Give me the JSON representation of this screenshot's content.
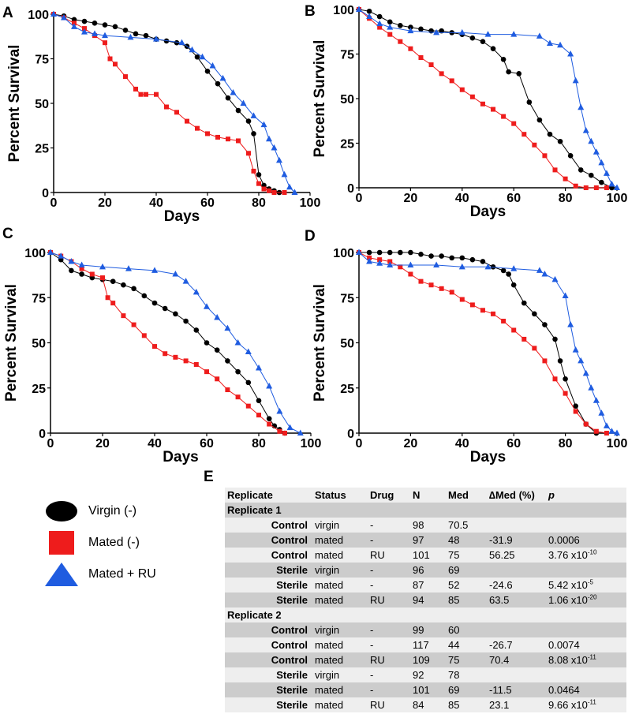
{
  "colors": {
    "virgin": "#000000",
    "mated": "#ee1c1c",
    "mated_ru": "#1f5ce0"
  },
  "chart_data": [
    {
      "panel": "A",
      "type": "line",
      "xlabel": "Days",
      "ylabel": "Percent Survival",
      "xlim": [
        0,
        100
      ],
      "ylim": [
        0,
        100
      ],
      "xticks": [
        "0",
        "20",
        "40",
        "60",
        "80",
        "100"
      ],
      "yticks": [
        "0",
        "25",
        "50",
        "75",
        "100"
      ],
      "series": [
        {
          "name": "Virgin (-)",
          "x": [
            0,
            4,
            8,
            12,
            16,
            20,
            24,
            28,
            32,
            36,
            40,
            44,
            48,
            52,
            56,
            60,
            64,
            68,
            72,
            76,
            78,
            80,
            82,
            84,
            86,
            88
          ],
          "y": [
            100,
            99,
            97,
            96,
            95,
            94,
            93,
            91,
            89,
            88,
            86,
            85,
            84,
            82,
            76,
            68,
            61,
            53,
            46,
            40,
            33,
            10,
            4,
            2,
            1,
            0
          ]
        },
        {
          "name": "Mated (-)",
          "x": [
            0,
            4,
            8,
            12,
            16,
            20,
            22,
            24,
            28,
            32,
            34,
            36,
            40,
            44,
            48,
            52,
            56,
            60,
            64,
            68,
            72,
            76,
            78,
            80,
            82,
            84,
            86,
            90
          ],
          "y": [
            100,
            98,
            95,
            92,
            88,
            84,
            75,
            72,
            65,
            58,
            55,
            55,
            55,
            48,
            45,
            40,
            36,
            33,
            31,
            30,
            29,
            22,
            12,
            5,
            2,
            1,
            0,
            0
          ]
        },
        {
          "name": "Mated + RU",
          "x": [
            0,
            4,
            8,
            12,
            16,
            20,
            30,
            40,
            50,
            54,
            58,
            62,
            66,
            70,
            74,
            78,
            82,
            84,
            86,
            88,
            90,
            92,
            94
          ],
          "y": [
            100,
            98,
            93,
            90,
            89,
            88,
            87,
            86,
            84,
            80,
            76,
            71,
            64,
            56,
            50,
            43,
            38,
            30,
            25,
            18,
            10,
            3,
            0
          ]
        }
      ]
    },
    {
      "panel": "B",
      "type": "line",
      "xlabel": "Days",
      "ylabel": "Percent Survival",
      "xlim": [
        0,
        100
      ],
      "ylim": [
        0,
        100
      ],
      "xticks": [
        "0",
        "20",
        "40",
        "60",
        "80",
        "100"
      ],
      "yticks": [
        "0",
        "25",
        "50",
        "75",
        "100"
      ],
      "series": [
        {
          "name": "Virgin (-)",
          "x": [
            0,
            4,
            8,
            12,
            16,
            20,
            24,
            28,
            32,
            36,
            40,
            44,
            48,
            52,
            56,
            58,
            62,
            66,
            70,
            74,
            78,
            82,
            86,
            90,
            94,
            98
          ],
          "y": [
            100,
            99,
            96,
            93,
            91,
            90,
            89,
            88,
            88,
            87,
            86,
            84,
            82,
            78,
            72,
            65,
            64,
            48,
            38,
            30,
            26,
            18,
            10,
            7,
            3,
            0
          ]
        },
        {
          "name": "Mated (-)",
          "x": [
            0,
            4,
            8,
            12,
            16,
            20,
            24,
            28,
            32,
            36,
            40,
            44,
            48,
            52,
            56,
            60,
            64,
            68,
            72,
            76,
            80,
            84,
            88,
            92,
            96
          ],
          "y": [
            100,
            95,
            90,
            86,
            82,
            78,
            73,
            69,
            64,
            60,
            55,
            51,
            47,
            44,
            40,
            36,
            30,
            24,
            18,
            10,
            5,
            1,
            0,
            0,
            0
          ]
        },
        {
          "name": "Mated + RU",
          "x": [
            0,
            4,
            8,
            12,
            20,
            30,
            40,
            50,
            60,
            70,
            74,
            78,
            82,
            84,
            86,
            88,
            90,
            92,
            94,
            96,
            98,
            100
          ],
          "y": [
            100,
            96,
            92,
            90,
            88,
            87,
            87,
            86,
            86,
            85,
            81,
            80,
            75,
            60,
            45,
            32,
            26,
            20,
            14,
            8,
            2,
            0
          ]
        }
      ]
    },
    {
      "panel": "C",
      "type": "line",
      "xlabel": "Days",
      "ylabel": "Percent Survival",
      "xlim": [
        0,
        100
      ],
      "ylim": [
        0,
        100
      ],
      "xticks": [
        "0",
        "20",
        "40",
        "60",
        "80",
        "100"
      ],
      "yticks": [
        "0",
        "25",
        "50",
        "75",
        "100"
      ],
      "series": [
        {
          "name": "Virgin (-)",
          "x": [
            0,
            4,
            8,
            12,
            16,
            20,
            24,
            28,
            32,
            36,
            40,
            44,
            48,
            52,
            56,
            60,
            64,
            68,
            72,
            76,
            80,
            84,
            86,
            88,
            90
          ],
          "y": [
            100,
            96,
            90,
            88,
            86,
            85,
            84,
            82,
            80,
            76,
            72,
            69,
            66,
            62,
            57,
            50,
            46,
            40,
            34,
            28,
            18,
            8,
            4,
            2,
            0
          ]
        },
        {
          "name": "Mated (-)",
          "x": [
            0,
            4,
            8,
            12,
            16,
            20,
            22,
            24,
            28,
            32,
            36,
            40,
            44,
            48,
            52,
            56,
            60,
            64,
            68,
            72,
            76,
            80,
            84,
            88,
            90
          ],
          "y": [
            100,
            98,
            95,
            91,
            88,
            86,
            75,
            72,
            65,
            60,
            54,
            48,
            44,
            42,
            40,
            38,
            34,
            30,
            24,
            20,
            15,
            10,
            5,
            1,
            0
          ]
        },
        {
          "name": "Mated + RU",
          "x": [
            0,
            4,
            8,
            12,
            20,
            30,
            40,
            48,
            52,
            56,
            60,
            64,
            68,
            72,
            76,
            80,
            84,
            88,
            92,
            96
          ],
          "y": [
            100,
            98,
            95,
            93,
            92,
            91,
            90,
            88,
            84,
            78,
            70,
            64,
            58,
            50,
            45,
            36,
            26,
            12,
            3,
            0
          ]
        }
      ]
    },
    {
      "panel": "D",
      "type": "line",
      "xlabel": "Days",
      "ylabel": "Percent Survival",
      "xlim": [
        0,
        100
      ],
      "ylim": [
        0,
        100
      ],
      "xticks": [
        "0",
        "20",
        "40",
        "60",
        "80",
        "100"
      ],
      "yticks": [
        "0",
        "25",
        "50",
        "75",
        "100"
      ],
      "series": [
        {
          "name": "Virgin (-)",
          "x": [
            0,
            4,
            8,
            12,
            16,
            20,
            24,
            28,
            32,
            36,
            40,
            44,
            48,
            52,
            56,
            58,
            60,
            64,
            68,
            72,
            76,
            78,
            80,
            84,
            88,
            92
          ],
          "y": [
            100,
            100,
            100,
            100,
            100,
            100,
            99,
            98,
            98,
            97,
            97,
            96,
            95,
            92,
            90,
            88,
            82,
            72,
            66,
            60,
            52,
            40,
            30,
            15,
            5,
            0
          ]
        },
        {
          "name": "Mated (-)",
          "x": [
            0,
            4,
            8,
            12,
            16,
            20,
            24,
            28,
            32,
            36,
            40,
            44,
            48,
            52,
            56,
            60,
            64,
            68,
            72,
            76,
            80,
            84,
            88,
            92,
            96
          ],
          "y": [
            100,
            97,
            96,
            95,
            92,
            88,
            84,
            82,
            80,
            78,
            74,
            71,
            68,
            66,
            62,
            57,
            52,
            47,
            40,
            30,
            22,
            12,
            5,
            1,
            0
          ]
        },
        {
          "name": "Mated + RU",
          "x": [
            0,
            4,
            8,
            12,
            20,
            30,
            40,
            50,
            60,
            70,
            72,
            76,
            80,
            82,
            84,
            86,
            88,
            90,
            92,
            94,
            96,
            98,
            100
          ],
          "y": [
            100,
            95,
            94,
            93,
            93,
            93,
            92,
            92,
            91,
            90,
            88,
            85,
            76,
            60,
            46,
            40,
            33,
            25,
            18,
            11,
            4,
            1,
            0
          ]
        }
      ]
    }
  ],
  "legend": [
    {
      "label": "Virgin (-)",
      "marker": "circle",
      "color": "#000000"
    },
    {
      "label": "Mated (-)",
      "marker": "square",
      "color": "#ee1c1c"
    },
    {
      "label": "Mated + RU",
      "marker": "triangle",
      "color": "#1f5ce0"
    }
  ],
  "table": {
    "panel_letter": "E",
    "headers": [
      "Replicate",
      "Status",
      "Drug",
      "N",
      "Med",
      "∆Med (%)",
      "p"
    ],
    "groups": [
      {
        "label": "Replicate 1",
        "rows": [
          {
            "strain": "Control",
            "status": "virgin",
            "drug": "-",
            "n": "98",
            "med": "70.5",
            "dmed": "",
            "p": "",
            "p_exp": ""
          },
          {
            "strain": "Control",
            "status": "mated",
            "drug": "-",
            "n": "97",
            "med": "48",
            "dmed": "-31.9",
            "p": "0.0006",
            "p_exp": ""
          },
          {
            "strain": "Control",
            "status": "mated",
            "drug": "RU",
            "n": "101",
            "med": "75",
            "dmed": "56.25",
            "p": "3.76 x10",
            "p_exp": "-10"
          },
          {
            "strain": "Sterile",
            "status": "virgin",
            "drug": "-",
            "n": "96",
            "med": "69",
            "dmed": "",
            "p": "",
            "p_exp": ""
          },
          {
            "strain": "Sterile",
            "status": "mated",
            "drug": "-",
            "n": "87",
            "med": "52",
            "dmed": "-24.6",
            "p": "5.42 x10",
            "p_exp": "-5"
          },
          {
            "strain": "Sterile",
            "status": "mated",
            "drug": "RU",
            "n": "94",
            "med": "85",
            "dmed": "63.5",
            "p": "1.06 x10",
            "p_exp": "-20"
          }
        ]
      },
      {
        "label": "Replicate 2",
        "rows": [
          {
            "strain": "Control",
            "status": "virgin",
            "drug": "-",
            "n": "99",
            "med": "60",
            "dmed": "",
            "p": "",
            "p_exp": ""
          },
          {
            "strain": "Control",
            "status": "mated",
            "drug": "-",
            "n": "117",
            "med": "44",
            "dmed": "-26.7",
            "p": "0.0074",
            "p_exp": ""
          },
          {
            "strain": "Control",
            "status": "mated",
            "drug": "RU",
            "n": "109",
            "med": "75",
            "dmed": "70.4",
            "p": "8.08 x10",
            "p_exp": "-11"
          },
          {
            "strain": "Sterile",
            "status": "virgin",
            "drug": "-",
            "n": "92",
            "med": "78",
            "dmed": "",
            "p": "",
            "p_exp": ""
          },
          {
            "strain": "Sterile",
            "status": "mated",
            "drug": "-",
            "n": "101",
            "med": "69",
            "dmed": "-11.5",
            "p": "0.0464",
            "p_exp": ""
          },
          {
            "strain": "Sterile",
            "status": "mated",
            "drug": "RU",
            "n": "84",
            "med": "85",
            "dmed": "23.1",
            "p": "9.66 x10",
            "p_exp": "-11"
          }
        ]
      }
    ]
  }
}
